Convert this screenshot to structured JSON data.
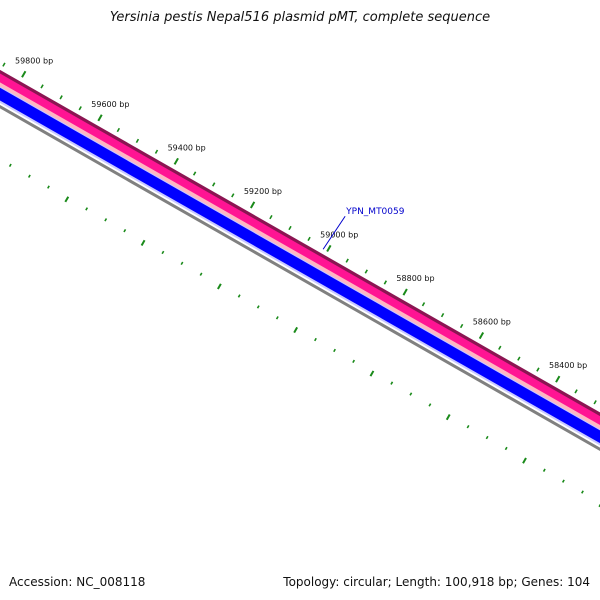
{
  "title": "Yersinia pestis Nepal516 plasmid pMT, complete sequence",
  "footer": {
    "accession": "Accession: NC_008118",
    "summary": "Topology: circular; Length: 100,918 bp; Genes: 104"
  },
  "colors": {
    "outer_border": "#8b1552",
    "outer_band": "#ff1493",
    "outer_inner_band": "#ffb6c1",
    "gene_band": "#0000ff",
    "gene_highlight": "#c8c8ff",
    "backbone": "#808080",
    "tick": "#1a8a1a",
    "gene_label": "#0000cc"
  },
  "ticks": [
    {
      "label": "59800 bp",
      "bp": 59800
    },
    {
      "label": "59600 bp",
      "bp": 59600
    },
    {
      "label": "59400 bp",
      "bp": 59400
    },
    {
      "label": "59200 bp",
      "bp": 59200
    },
    {
      "label": "59000 bp",
      "bp": 59000
    },
    {
      "label": "58800 bp",
      "bp": 58800
    },
    {
      "label": "58600 bp",
      "bp": 58600
    },
    {
      "label": "58400 bp",
      "bp": 58400
    }
  ],
  "genes": [
    {
      "label": "YPN_MT0059",
      "bp": 59000
    }
  ]
}
